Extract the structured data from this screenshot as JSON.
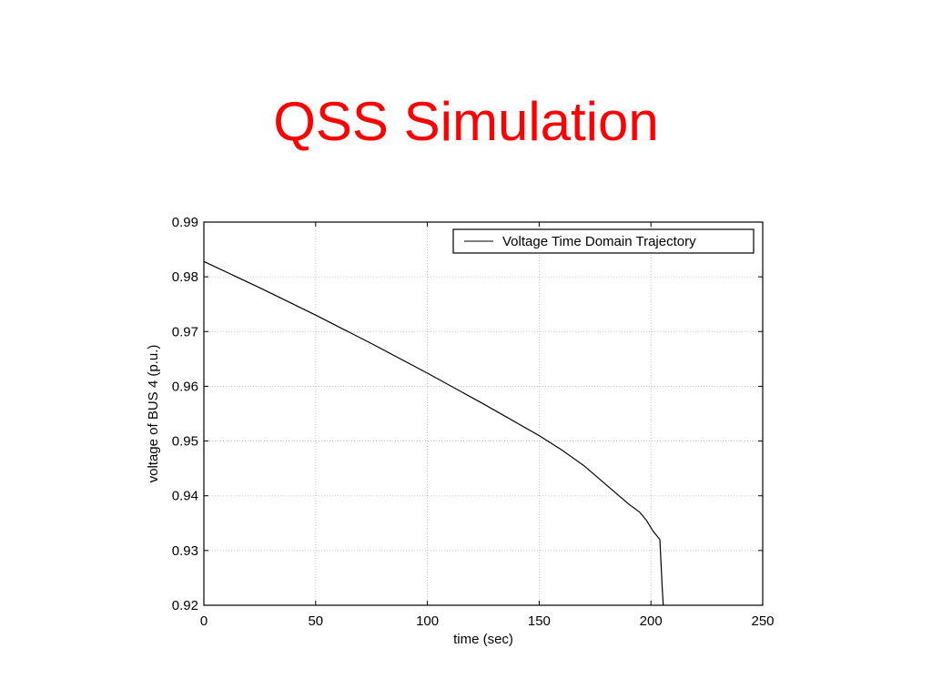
{
  "slide": {
    "title": "QSS Simulation",
    "title_color": "#ff0000"
  },
  "chart_data": {
    "type": "line",
    "title": "",
    "xlabel": "time (sec)",
    "ylabel": "voltage of BUS 4 (p.u.)",
    "xlim": [
      0,
      250
    ],
    "ylim": [
      0.92,
      0.99
    ],
    "xticks": [
      0,
      50,
      100,
      150,
      200,
      250
    ],
    "xtick_labels": [
      "0",
      "50",
      "100",
      "150",
      "200",
      "250"
    ],
    "yticks": [
      0.92,
      0.93,
      0.94,
      0.95,
      0.96,
      0.97,
      0.98,
      0.99
    ],
    "ytick_labels": [
      "0.92",
      "0.93",
      "0.94",
      "0.95",
      "0.96",
      "0.97",
      "0.98",
      "0.99"
    ],
    "grid": true,
    "legend_position": "top-right",
    "series": [
      {
        "name": "Voltage Time Domain Trajectory",
        "color": "#000000",
        "x": [
          0,
          25,
          50,
          75,
          100,
          125,
          150,
          160,
          170,
          180,
          190,
          195,
          198,
          201,
          204,
          205,
          205.5
        ],
        "y": [
          0.9828,
          0.978,
          0.973,
          0.9678,
          0.9624,
          0.9568,
          0.951,
          0.9484,
          0.9455,
          0.942,
          0.9385,
          0.937,
          0.9355,
          0.9335,
          0.932,
          0.9235,
          0.92
        ]
      }
    ]
  }
}
